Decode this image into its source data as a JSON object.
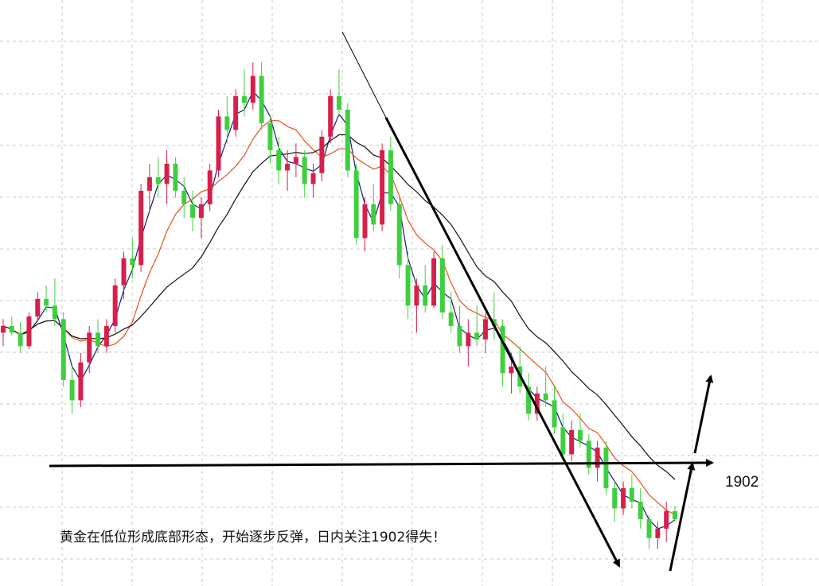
{
  "colors": {
    "up": "#d81e4a",
    "down": "#3ecf3e",
    "ma_fast": "#1a1a6e",
    "ma_mid": "#e8501c",
    "ma_slow": "#111111",
    "trend": "#000000",
    "grid": "#c8c8c8"
  },
  "chart_data": {
    "type": "candlestick",
    "title": "",
    "annotation": "黄金在低位形成底部形态，开始逐步反弹，日内关注1902得失！",
    "key_level": {
      "label": "1902",
      "value": 1902
    },
    "xlabel": "",
    "ylabel": "",
    "grid": true,
    "notes": "Price axis is not labeled in the original; only the 1902 level is printed.",
    "candles": [
      [
        2000,
        2010,
        1990,
        2005
      ],
      [
        2005,
        2012,
        1998,
        2000
      ],
      [
        2000,
        2008,
        1985,
        1990
      ],
      [
        1990,
        2015,
        1988,
        2012
      ],
      [
        2012,
        2030,
        2008,
        2025
      ],
      [
        2025,
        2035,
        2015,
        2020
      ],
      [
        2020,
        2040,
        2005,
        2010
      ],
      [
        2010,
        2015,
        1960,
        1965
      ],
      [
        1965,
        1975,
        1940,
        1950
      ],
      [
        1950,
        1985,
        1945,
        1978
      ],
      [
        1978,
        2005,
        1970,
        2000
      ],
      [
        2000,
        2010,
        1985,
        1990
      ],
      [
        1990,
        2010,
        1985,
        2005
      ],
      [
        2005,
        2040,
        2000,
        2035
      ],
      [
        2035,
        2060,
        2025,
        2055
      ],
      [
        2055,
        2070,
        2040,
        2050
      ],
      [
        2050,
        2110,
        2045,
        2105
      ],
      [
        2105,
        2125,
        2090,
        2115
      ],
      [
        2115,
        2130,
        2100,
        2110
      ],
      [
        2110,
        2135,
        2095,
        2125
      ],
      [
        2125,
        2130,
        2100,
        2105
      ],
      [
        2105,
        2115,
        2085,
        2095
      ],
      [
        2095,
        2105,
        2075,
        2085
      ],
      [
        2085,
        2100,
        2070,
        2095
      ],
      [
        2095,
        2125,
        2090,
        2120
      ],
      [
        2120,
        2165,
        2115,
        2160
      ],
      [
        2160,
        2175,
        2140,
        2150
      ],
      [
        2150,
        2180,
        2145,
        2175
      ],
      [
        2175,
        2195,
        2160,
        2170
      ],
      [
        2170,
        2200,
        2165,
        2190
      ],
      [
        2190,
        2200,
        2150,
        2155
      ],
      [
        2155,
        2160,
        2125,
        2135
      ],
      [
        2135,
        2145,
        2110,
        2120
      ],
      [
        2120,
        2135,
        2105,
        2125
      ],
      [
        2125,
        2140,
        2115,
        2130
      ],
      [
        2130,
        2135,
        2100,
        2110
      ],
      [
        2110,
        2125,
        2100,
        2118
      ],
      [
        2118,
        2150,
        2112,
        2145
      ],
      [
        2145,
        2180,
        2140,
        2175
      ],
      [
        2175,
        2195,
        2160,
        2165
      ],
      [
        2165,
        2170,
        2115,
        2120
      ],
      [
        2120,
        2125,
        2065,
        2070
      ],
      [
        2070,
        2100,
        2060,
        2095
      ],
      [
        2095,
        2110,
        2075,
        2080
      ],
      [
        2080,
        2140,
        2075,
        2135
      ],
      [
        2135,
        2145,
        2090,
        2095
      ],
      [
        2095,
        2100,
        2040,
        2050
      ],
      [
        2050,
        2060,
        2010,
        2020
      ],
      [
        2020,
        2040,
        2000,
        2035
      ],
      [
        2035,
        2050,
        2015,
        2020
      ],
      [
        2020,
        2060,
        2018,
        2055
      ],
      [
        2055,
        2065,
        2010,
        2015
      ],
      [
        2015,
        2030,
        2000,
        2005
      ],
      [
        2005,
        2020,
        1985,
        1990
      ],
      [
        1990,
        2010,
        1975,
        2000
      ],
      [
        2000,
        2020,
        1990,
        1995
      ],
      [
        1995,
        2015,
        1985,
        2010
      ],
      [
        2010,
        2030,
        1995,
        2005
      ],
      [
        2005,
        2010,
        1960,
        1970
      ],
      [
        1970,
        1985,
        1955,
        1975
      ],
      [
        1975,
        1990,
        1955,
        1960
      ],
      [
        1960,
        1970,
        1935,
        1940
      ],
      [
        1940,
        1960,
        1935,
        1955
      ],
      [
        1955,
        1975,
        1945,
        1950
      ],
      [
        1950,
        1960,
        1925,
        1930
      ],
      [
        1930,
        1940,
        1905,
        1910
      ],
      [
        1910,
        1935,
        1905,
        1928
      ],
      [
        1928,
        1940,
        1915,
        1920
      ],
      [
        1920,
        1925,
        1895,
        1900
      ],
      [
        1900,
        1920,
        1890,
        1915
      ],
      [
        1915,
        1920,
        1880,
        1885
      ],
      [
        1885,
        1890,
        1860,
        1870
      ],
      [
        1870,
        1890,
        1865,
        1885
      ],
      [
        1885,
        1895,
        1870,
        1875
      ],
      [
        1875,
        1885,
        1855,
        1862
      ],
      [
        1862,
        1865,
        1840,
        1848
      ],
      [
        1848,
        1860,
        1840,
        1855
      ],
      [
        1855,
        1875,
        1845,
        1868
      ],
      [
        1868,
        1872,
        1860,
        1862
      ]
    ],
    "moving_averages": [
      {
        "period": "fast",
        "color": "#1a1a6e"
      },
      {
        "period": "mid",
        "color": "#e8501c"
      },
      {
        "period": "slow",
        "color": "#111111"
      }
    ]
  }
}
